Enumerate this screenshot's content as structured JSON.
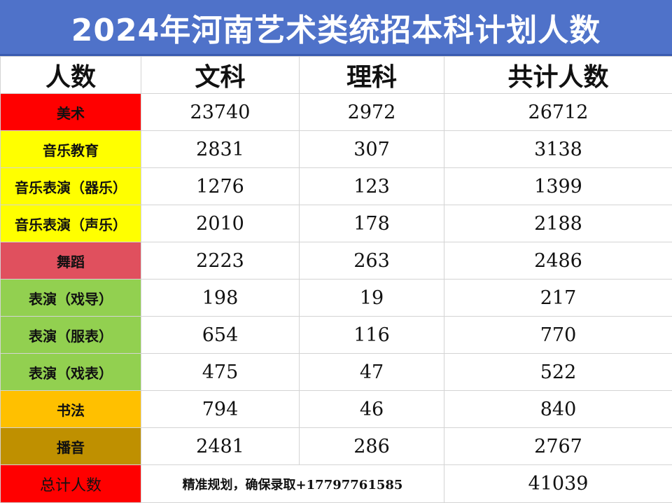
{
  "title": "2024年河南艺术类统招本科计划人数",
  "header": {
    "label": "人数",
    "wen": "文科",
    "li": "理科",
    "total": "共计人数"
  },
  "rows": [
    {
      "category": "美术",
      "wen": "23740",
      "li": "2972",
      "total": "26712",
      "color": "#ff0000"
    },
    {
      "category": "音乐教育",
      "wen": "2831",
      "li": "307",
      "total": "3138",
      "color": "#ffff00"
    },
    {
      "category": "音乐表演（器乐）",
      "wen": "1276",
      "li": "123",
      "total": "1399",
      "color": "#ffff00"
    },
    {
      "category": "音乐表演（声乐）",
      "wen": "2010",
      "li": "178",
      "total": "2188",
      "color": "#ffff00"
    },
    {
      "category": "舞蹈",
      "wen": "2223",
      "li": "263",
      "total": "2486",
      "color": "#e0505e"
    },
    {
      "category": "表演（戏导）",
      "wen": "198",
      "li": "19",
      "total": "217",
      "color": "#92d050"
    },
    {
      "category": "表演（服表）",
      "wen": "654",
      "li": "116",
      "total": "770",
      "color": "#92d050"
    },
    {
      "category": "表演（戏表）",
      "wen": "475",
      "li": "47",
      "total": "522",
      "color": "#92d050"
    },
    {
      "category": "书法",
      "wen": "794",
      "li": "46",
      "total": "840",
      "color": "#ffc000"
    },
    {
      "category": "播音",
      "wen": "2481",
      "li": "286",
      "total": "2767",
      "color": "#bf9000"
    }
  ],
  "total_row": {
    "label": "总计人数",
    "note": "精准规划，确保录取+17797761585",
    "total": "41039",
    "label_color": "#ff0000"
  },
  "colors": {
    "title_bg": "#4f72c9",
    "title_text": "#ffffff",
    "grid": "#d4d4d4"
  }
}
